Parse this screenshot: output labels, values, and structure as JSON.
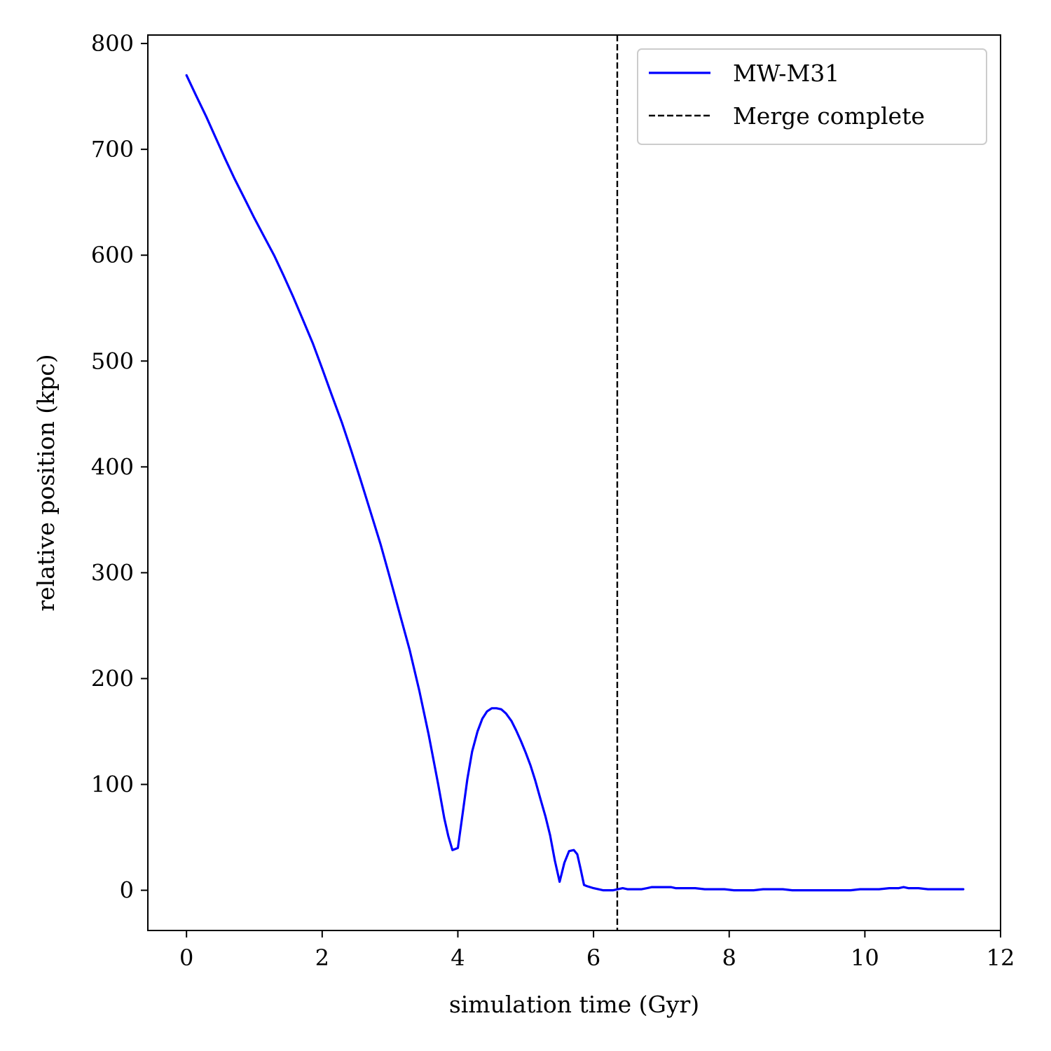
{
  "chart_data": {
    "type": "line",
    "title": "",
    "xlabel": "simulation time (Gyr)",
    "ylabel": "relative position (kpc)",
    "xlim": [
      -0.57,
      12.0
    ],
    "ylim": [
      -38,
      808
    ],
    "xticks": [
      0,
      2,
      4,
      6,
      8,
      10,
      12
    ],
    "yticks": [
      0,
      100,
      200,
      300,
      400,
      500,
      600,
      700,
      800
    ],
    "grid": false,
    "legend_position": "top-right",
    "series": [
      {
        "name": "MW-M31",
        "color": "#0000ff",
        "style": "solid",
        "x": [
          0.0,
          0.14,
          0.29,
          0.43,
          0.57,
          0.71,
          0.86,
          1.0,
          1.14,
          1.29,
          1.43,
          1.57,
          1.71,
          1.86,
          2.0,
          2.14,
          2.29,
          2.43,
          2.57,
          2.71,
          2.86,
          3.0,
          3.14,
          3.29,
          3.43,
          3.57,
          3.71,
          3.8,
          3.86,
          3.92,
          4.0,
          4.07,
          4.14,
          4.21,
          4.29,
          4.36,
          4.43,
          4.5,
          4.57,
          4.64,
          4.71,
          4.79,
          4.86,
          4.93,
          5.0,
          5.07,
          5.14,
          5.21,
          5.29,
          5.36,
          5.43,
          5.5,
          5.57,
          5.64,
          5.71,
          5.76,
          5.81,
          5.86,
          5.9,
          5.95,
          6.0,
          6.07,
          6.14,
          6.2,
          6.29,
          6.36,
          6.43,
          6.5,
          6.57,
          6.64,
          6.71,
          6.79,
          6.86,
          6.93,
          7.0,
          7.07,
          7.14,
          7.21,
          7.36,
          7.5,
          7.64,
          7.79,
          7.93,
          8.07,
          8.21,
          8.36,
          8.5,
          8.64,
          8.79,
          8.93,
          9.07,
          9.21,
          9.36,
          9.5,
          9.64,
          9.79,
          9.93,
          10.07,
          10.21,
          10.36,
          10.5,
          10.57,
          10.64,
          10.79,
          10.93,
          11.07,
          11.21,
          11.36,
          11.45
        ],
        "values": [
          770,
          751,
          731,
          711,
          691,
          672,
          653,
          635,
          618,
          600,
          581,
          561,
          540,
          517,
          493,
          468,
          442,
          415,
          387,
          358,
          327,
          295,
          262,
          227,
          189,
          147,
          100,
          68,
          51,
          38,
          40,
          72,
          105,
          131,
          150,
          162,
          169,
          172,
          172,
          171,
          167,
          160,
          151,
          141,
          130,
          118,
          104,
          88,
          70,
          52,
          28,
          8,
          26,
          37,
          38,
          34,
          20,
          5,
          4,
          3,
          2,
          1,
          0,
          0,
          0,
          1,
          2,
          1,
          1,
          1,
          1,
          2,
          3,
          3,
          3,
          3,
          3,
          2,
          2,
          2,
          1,
          1,
          1,
          0,
          0,
          0,
          1,
          1,
          1,
          0,
          0,
          0,
          0,
          0,
          0,
          0,
          1,
          1,
          1,
          2,
          2,
          3,
          2,
          2,
          1,
          1,
          1,
          1,
          1
        ]
      },
      {
        "name": "Merge complete",
        "color": "#000000",
        "style": "dashed",
        "vline_x": 6.35
      }
    ]
  }
}
